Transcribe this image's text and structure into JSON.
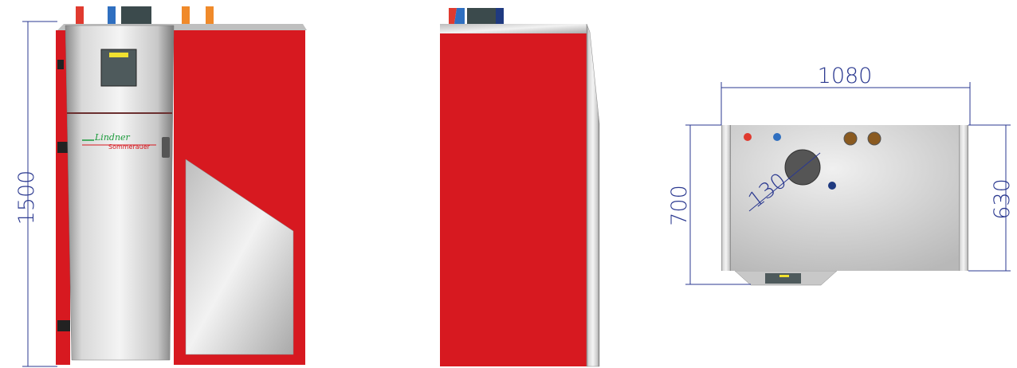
{
  "front_view": {
    "height_label": "1500",
    "logo": {
      "line1": "Lindner",
      "line2": "Sommerauer"
    }
  },
  "top_view": {
    "width_label": "1080",
    "depth_label": "700",
    "inner_depth_label": "630",
    "diameter_label": "130"
  }
}
